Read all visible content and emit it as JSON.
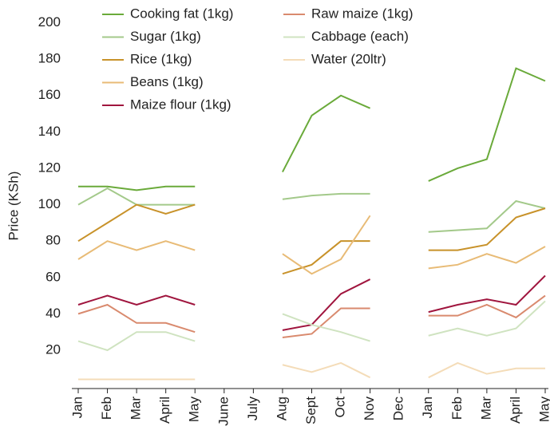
{
  "chart_data": {
    "type": "line",
    "ylabel": "Price (KSh)",
    "categories": [
      "Jan",
      "Feb",
      "Mar",
      "April",
      "May",
      "June",
      "July",
      "Aug",
      "Sept",
      "Oct",
      "Nov",
      "Dec",
      "Jan",
      "Feb",
      "Mar",
      "April",
      "May"
    ],
    "series": [
      {
        "name": "Cooking fat (1kg)",
        "color": "#6aaa3a",
        "values": [
          110,
          110,
          108,
          110,
          110,
          null,
          null,
          118,
          149,
          160,
          153,
          null,
          113,
          120,
          125,
          175,
          168
        ]
      },
      {
        "name": "Sugar (1kg)",
        "color": "#a3c98a",
        "values": [
          100,
          109,
          100,
          100,
          100,
          null,
          null,
          103,
          105,
          106,
          106,
          null,
          85,
          86,
          87,
          102,
          98
        ]
      },
      {
        "name": "Rice (1kg)",
        "color": "#c8922a",
        "values": [
          80,
          90,
          100,
          95,
          100,
          null,
          null,
          62,
          67,
          80,
          80,
          null,
          75,
          75,
          78,
          93,
          98
        ]
      },
      {
        "name": "Beans (1kg)",
        "color": "#e8bb76",
        "values": [
          70,
          80,
          75,
          80,
          75,
          null,
          null,
          73,
          62,
          70,
          94,
          null,
          65,
          67,
          73,
          68,
          77
        ]
      },
      {
        "name": "Maize flour (1kg)",
        "color": "#a0153e",
        "values": [
          45,
          50,
          45,
          50,
          45,
          null,
          null,
          31,
          34,
          51,
          59,
          null,
          41,
          45,
          48,
          45,
          61
        ]
      },
      {
        "name": "Raw maize (1kg)",
        "color": "#d98a6e",
        "values": [
          40,
          45,
          35,
          35,
          30,
          null,
          null,
          27,
          29,
          43,
          43,
          null,
          39,
          39,
          45,
          38,
          50
        ]
      },
      {
        "name": "Cabbage (each)",
        "color": "#cfe3c0",
        "values": [
          25,
          20,
          30,
          30,
          25,
          null,
          null,
          40,
          34,
          30,
          25,
          null,
          28,
          32,
          28,
          32,
          47
        ]
      },
      {
        "name": "Water (20ltr)",
        "color": "#f4dcb8",
        "values": [
          4,
          4,
          4,
          4,
          4,
          null,
          null,
          12,
          8,
          13,
          5,
          null,
          5,
          13,
          7,
          10,
          10
        ]
      }
    ],
    "ylim": [
      0,
      208
    ],
    "yticks": [
      20,
      40,
      60,
      80,
      100,
      120,
      140,
      160,
      180,
      200
    ]
  }
}
